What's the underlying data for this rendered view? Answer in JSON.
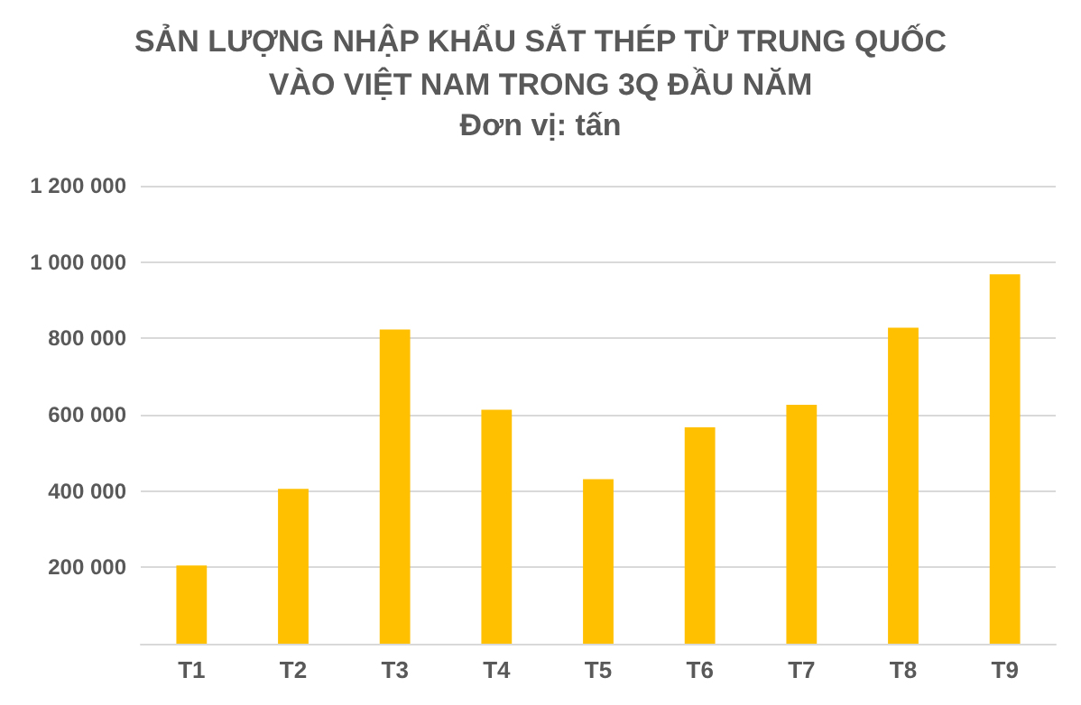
{
  "chart_data": {
    "type": "bar",
    "title": "SẢN LƯỢNG NHẬP KHẨU SẮT THÉP TỪ TRUNG QUỐC\nVÀO VIỆT NAM TRONG 3Q ĐẦU NĂM",
    "subtitle": "Đơn vị: tấn",
    "categories": [
      "T1",
      "T2",
      "T3",
      "T4",
      "T5",
      "T6",
      "T7",
      "T8",
      "T9"
    ],
    "values": [
      205000,
      406000,
      823000,
      613000,
      431000,
      567000,
      626000,
      828000,
      968000
    ],
    "color": "#ffc000",
    "ylim": [
      0,
      1200000
    ],
    "yticks": [
      {
        "value": 0,
        "label": null
      },
      {
        "value": 200000,
        "label": "200 000"
      },
      {
        "value": 400000,
        "label": "400 000"
      },
      {
        "value": 600000,
        "label": "600 000"
      },
      {
        "value": 800000,
        "label": "800 000"
      },
      {
        "value": 1000000,
        "label": "1 000 000"
      },
      {
        "value": 1200000,
        "label": "1 200 000"
      }
    ],
    "grid": "y"
  }
}
